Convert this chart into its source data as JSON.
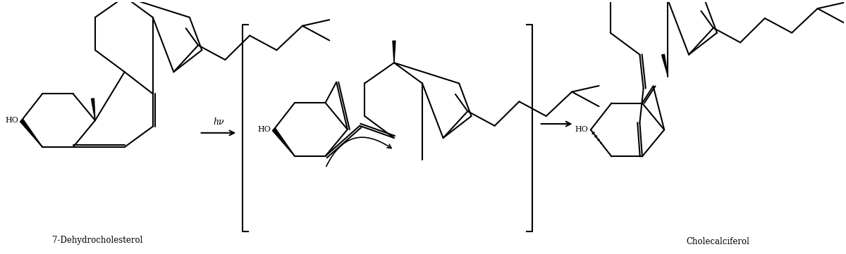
{
  "background_color": "#ffffff",
  "line_color": "#000000",
  "line_width": 1.5,
  "label_7dhc": "7-Dehydrocholesterol",
  "label_chol": "Cholecalciferol",
  "label_hv": "hν",
  "fig_width": 12.0,
  "fig_height": 3.61,
  "dpi": 100
}
